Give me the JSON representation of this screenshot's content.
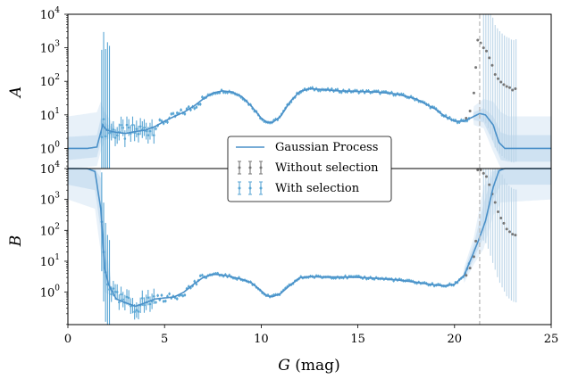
{
  "chart_data": {
    "type": "scatter",
    "xlabel_symbol": "G",
    "xlabel_unit": " (mag)",
    "xlim": [
      0,
      25
    ],
    "xticks": [
      0,
      5,
      10,
      15,
      20,
      25
    ],
    "cutoff_x": 21.3,
    "colors": {
      "gp": "#4a90c8",
      "band_inner": "#cfe2f2",
      "band_outer": "#e8f1f9",
      "with_selection": "#5aa6d4",
      "without_selection": "#777777",
      "cutoff": "#bbbbbb",
      "errorbar_light": "#bcd5e8"
    },
    "legend": {
      "placement": "center",
      "entries": [
        "Gaussian Process",
        "Without selection",
        "With selection"
      ]
    },
    "panels": [
      {
        "name": "A",
        "ylabel": "A",
        "yscale": "log",
        "ylim_exp": [
          -0.6,
          4
        ],
        "yticks_exp": [
          0,
          1,
          2,
          3,
          4
        ],
        "gp_curve": [
          [
            0,
            1
          ],
          [
            1.0,
            1
          ],
          [
            1.5,
            1.1
          ],
          [
            1.8,
            5
          ],
          [
            2.0,
            3.5
          ],
          [
            2.5,
            3
          ],
          [
            3,
            2.8
          ],
          [
            3.5,
            3.2
          ],
          [
            4,
            3.5
          ],
          [
            4.5,
            4.5
          ],
          [
            5,
            6.5
          ],
          [
            5.5,
            9
          ],
          [
            6,
            12
          ],
          [
            6.5,
            18
          ],
          [
            7,
            30
          ],
          [
            7.5,
            45
          ],
          [
            8,
            52
          ],
          [
            8.5,
            48
          ],
          [
            9,
            35
          ],
          [
            9.5,
            18
          ],
          [
            10,
            8
          ],
          [
            10.3,
            6
          ],
          [
            10.6,
            6
          ],
          [
            11,
            9
          ],
          [
            11.5,
            25
          ],
          [
            12,
            50
          ],
          [
            12.5,
            60
          ],
          [
            13,
            58
          ],
          [
            14,
            52
          ],
          [
            15,
            50
          ],
          [
            16,
            48
          ],
          [
            17,
            42
          ],
          [
            18,
            30
          ],
          [
            19,
            15
          ],
          [
            19.5,
            9
          ],
          [
            20,
            6.5
          ],
          [
            20.5,
            6.5
          ],
          [
            21,
            9
          ],
          [
            21.3,
            11
          ],
          [
            21.6,
            10
          ],
          [
            22,
            5
          ],
          [
            22.3,
            1.5
          ],
          [
            22.6,
            1
          ],
          [
            25,
            1
          ]
        ],
        "band_inner": [
          [
            0,
            0.45,
            2.2
          ],
          [
            1.5,
            0.55,
            2.5
          ],
          [
            1.7,
            1.5,
            8
          ],
          [
            1.9,
            2.5,
            6
          ],
          [
            2.5,
            2.5,
            3.6
          ],
          [
            21,
            7,
            12
          ],
          [
            21.5,
            6,
            16
          ],
          [
            22,
            1.5,
            9
          ],
          [
            22.4,
            0.45,
            3
          ],
          [
            22.8,
            0.4,
            2.5
          ],
          [
            25,
            0.4,
            2.5
          ]
        ],
        "band_outer": [
          [
            0,
            0.25,
            9
          ],
          [
            1.5,
            0.3,
            12
          ],
          [
            1.7,
            0.8,
            25
          ],
          [
            1.9,
            1.8,
            12
          ],
          [
            2.5,
            2.2,
            4
          ],
          [
            21,
            5,
            18
          ],
          [
            21.5,
            4,
            30
          ],
          [
            22,
            0.8,
            25
          ],
          [
            22.4,
            0.25,
            12
          ],
          [
            22.8,
            0.2,
            9
          ],
          [
            25,
            0.2,
            9
          ]
        ],
        "without_selection": [
          [
            20.6,
            8
          ],
          [
            20.8,
            13
          ],
          [
            21.0,
            45
          ],
          [
            21.1,
            260
          ],
          [
            21.2,
            1700
          ],
          [
            21.35,
            1400
          ],
          [
            21.5,
            1000
          ],
          [
            21.65,
            800
          ],
          [
            21.8,
            500
          ],
          [
            21.95,
            300
          ],
          [
            22.1,
            160
          ],
          [
            22.25,
            120
          ],
          [
            22.4,
            95
          ],
          [
            22.55,
            80
          ],
          [
            22.7,
            70
          ],
          [
            22.85,
            65
          ],
          [
            23.0,
            55
          ],
          [
            23.15,
            60
          ]
        ]
      },
      {
        "name": "B",
        "ylabel": "B",
        "yscale": "log",
        "ylim_exp": [
          -1.05,
          4
        ],
        "yticks_exp": [
          0,
          1,
          2,
          3,
          4
        ],
        "gp_curve": [
          [
            0,
            10000
          ],
          [
            1.0,
            10000
          ],
          [
            1.4,
            8000
          ],
          [
            1.7,
            500
          ],
          [
            1.9,
            6
          ],
          [
            2.1,
            1.8
          ],
          [
            2.5,
            0.6
          ],
          [
            3,
            0.45
          ],
          [
            3.5,
            0.35
          ],
          [
            4,
            0.45
          ],
          [
            4.5,
            0.6
          ],
          [
            5,
            0.65
          ],
          [
            5.5,
            0.7
          ],
          [
            6,
            1
          ],
          [
            6.5,
            1.8
          ],
          [
            7,
            3
          ],
          [
            7.5,
            3.8
          ],
          [
            8,
            3.6
          ],
          [
            8.5,
            3.1
          ],
          [
            9,
            2.6
          ],
          [
            9.5,
            2
          ],
          [
            10,
            1.1
          ],
          [
            10.3,
            0.75
          ],
          [
            10.6,
            0.72
          ],
          [
            11,
            0.9
          ],
          [
            11.5,
            1.7
          ],
          [
            12,
            2.9
          ],
          [
            12.5,
            3.2
          ],
          [
            13,
            3.1
          ],
          [
            14,
            3.1
          ],
          [
            15,
            3
          ],
          [
            16,
            2.8
          ],
          [
            17,
            2.5
          ],
          [
            18,
            2.1
          ],
          [
            19,
            1.7
          ],
          [
            19.5,
            1.6
          ],
          [
            20,
            1.8
          ],
          [
            20.5,
            3.5
          ],
          [
            21,
            20
          ],
          [
            21.3,
            60
          ],
          [
            21.6,
            200
          ],
          [
            22,
            2500
          ],
          [
            22.3,
            8500
          ],
          [
            22.6,
            10000
          ],
          [
            25,
            10000
          ]
        ],
        "band_inner": [
          [
            0,
            3000,
            10000
          ],
          [
            1.4,
            2000,
            10000
          ],
          [
            1.7,
            100,
            5000
          ],
          [
            1.9,
            2,
            20
          ],
          [
            2.2,
            1,
            3
          ],
          [
            20.5,
            2.5,
            5
          ],
          [
            21,
            12,
            35
          ],
          [
            21.5,
            60,
            700
          ],
          [
            22,
            1000,
            8000
          ],
          [
            22.4,
            3000,
            10000
          ],
          [
            25,
            3000,
            10000
          ]
        ],
        "band_outer": [
          [
            0,
            1000,
            10000
          ],
          [
            1.4,
            500,
            10000
          ],
          [
            1.7,
            20,
            10000
          ],
          [
            1.9,
            1,
            60
          ],
          [
            2.2,
            0.8,
            4
          ],
          [
            20.5,
            2,
            6.5
          ],
          [
            21,
            8,
            60
          ],
          [
            21.5,
            25,
            2500
          ],
          [
            22,
            300,
            10000
          ],
          [
            22.4,
            800,
            10000
          ],
          [
            25,
            1000,
            10000
          ]
        ],
        "without_selection": [
          [
            20.6,
            3.5
          ],
          [
            20.8,
            6
          ],
          [
            21.0,
            14
          ],
          [
            21.1,
            45
          ],
          [
            21.2,
            9000
          ],
          [
            21.35,
            9000
          ],
          [
            21.5,
            7000
          ],
          [
            21.65,
            5500
          ],
          [
            21.8,
            3000
          ],
          [
            21.95,
            1500
          ],
          [
            22.1,
            800
          ],
          [
            22.25,
            400
          ],
          [
            22.4,
            250
          ],
          [
            22.55,
            170
          ],
          [
            22.7,
            110
          ],
          [
            22.85,
            90
          ],
          [
            23.0,
            75
          ],
          [
            23.15,
            70
          ]
        ]
      }
    ]
  }
}
